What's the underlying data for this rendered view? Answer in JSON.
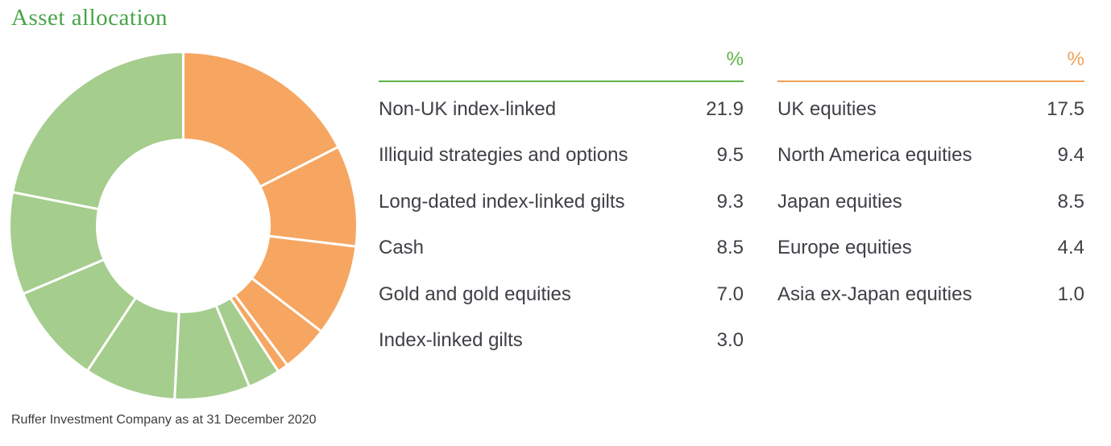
{
  "title": "Asset allocation",
  "footnote": "Ruffer Investment Company as at 31 December 2020",
  "colors": {
    "green": "#a5cd8d",
    "orange": "#f6a661",
    "title_green": "#47a447",
    "accent_green": "#5eb245",
    "accent_orange": "#f0a155",
    "text": "#3f3f46"
  },
  "chart_data": {
    "type": "pie",
    "subtype": "donut",
    "title": "Asset allocation",
    "units": "%",
    "start_angle_deg": 0,
    "direction": "clockwise",
    "inner_radius_ratio": 0.495,
    "legend_position": "none",
    "slices": [
      {
        "name": "UK equities",
        "value": 17.5,
        "color_key": "orange"
      },
      {
        "name": "North America equities",
        "value": 9.4,
        "color_key": "orange"
      },
      {
        "name": "Japan equities",
        "value": 8.5,
        "color_key": "orange"
      },
      {
        "name": "Europe equities",
        "value": 4.4,
        "color_key": "orange"
      },
      {
        "name": "Asia ex-Japan equities",
        "value": 1.0,
        "color_key": "orange"
      },
      {
        "name": "Index-linked gilts",
        "value": 3.0,
        "color_key": "green"
      },
      {
        "name": "Gold and gold equities",
        "value": 7.0,
        "color_key": "green"
      },
      {
        "name": "Cash",
        "value": 8.5,
        "color_key": "green"
      },
      {
        "name": "Long-dated index-linked gilts",
        "value": 9.3,
        "color_key": "green"
      },
      {
        "name": "Illiquid strategies and options",
        "value": 9.5,
        "color_key": "green"
      },
      {
        "name": "Non-UK index-linked",
        "value": 21.9,
        "color_key": "green"
      }
    ]
  },
  "tables": [
    {
      "header": "%",
      "accent_key": "accent_green",
      "rows": [
        {
          "label": "Non-UK index-linked",
          "value": "21.9"
        },
        {
          "label": "Illiquid strategies and options",
          "value": "9.5"
        },
        {
          "label": "Long-dated index-linked gilts",
          "value": "9.3"
        },
        {
          "label": "Cash",
          "value": "8.5"
        },
        {
          "label": "Gold and gold equities",
          "value": "7.0"
        },
        {
          "label": "Index-linked gilts",
          "value": "3.0"
        }
      ]
    },
    {
      "header": "%",
      "accent_key": "accent_orange",
      "rows": [
        {
          "label": "UK equities",
          "value": "17.5"
        },
        {
          "label": "North America equities",
          "value": "9.4"
        },
        {
          "label": "Japan equities",
          "value": "8.5"
        },
        {
          "label": "Europe equities",
          "value": "4.4"
        },
        {
          "label": "Asia ex-Japan equities",
          "value": "1.0"
        }
      ]
    }
  ]
}
